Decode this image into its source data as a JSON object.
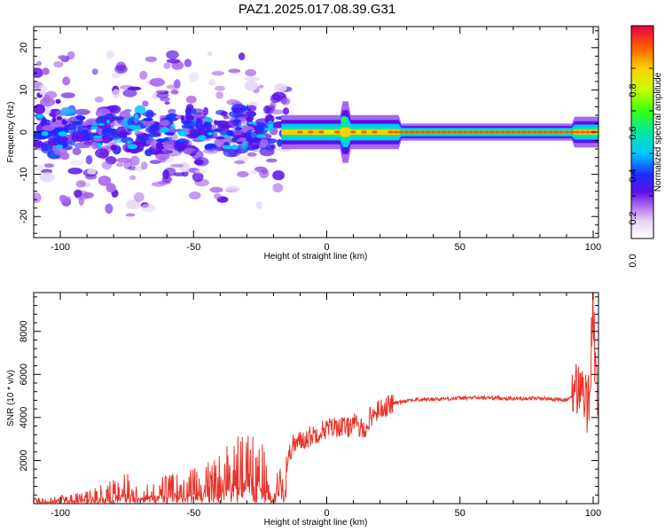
{
  "title": "PAZ1.2025.017.08.39.G31",
  "colors": {
    "snr_line": "#e8332b",
    "axis": "#000000",
    "spectrogram_colormap": [
      "#ffffff",
      "#e8d6f5",
      "#a868ee",
      "#5a10e6",
      "#1e2cff",
      "#00c8ff",
      "#00e8a0",
      "#38ff10",
      "#c8ff00",
      "#ffd000",
      "#ff5a00",
      "#e8004a"
    ]
  },
  "chart_data": [
    {
      "type": "heatmap",
      "name": "spectrogram",
      "xlabel": "Height of straight line (km)",
      "ylabel": "Frequency (Hz)",
      "xlim": [
        -110,
        102
      ],
      "ylim": [
        -25,
        25
      ],
      "xticks": [
        -100,
        -50,
        0,
        50,
        100
      ],
      "yticks": [
        20,
        10,
        0,
        -10,
        -20
      ],
      "colorbar": {
        "label": "Normalized spectral amplitude",
        "range": [
          0,
          1
        ],
        "ticks": [
          "0.0",
          "0.2",
          "0.4",
          "0.6",
          "0.8"
        ],
        "tick_values": [
          0.0,
          0.2,
          0.4,
          0.6,
          0.8
        ]
      },
      "description_bands": [
        {
          "x_range": [
            -110,
            -18
          ],
          "pattern": "diffuse scattered noise, amplitude 0.1-0.4, frequency spread -25..25 Hz"
        },
        {
          "x_range": [
            -18,
            102
          ],
          "pattern": "coherent line near 0 Hz, amplitude 0.5-1.0"
        }
      ]
    },
    {
      "type": "line",
      "name": "snr",
      "xlabel": "Height of straight line (km)",
      "ylabel": "SNR (10 * v/v)",
      "xlim": [
        -110,
        102
      ],
      "ylim": [
        0,
        9800
      ],
      "xticks": [
        -100,
        -50,
        0,
        50,
        100
      ],
      "yticks": [
        2000,
        4000,
        6000,
        8000
      ],
      "series": [
        {
          "x": [
            -110,
            -100,
            -90,
            -80,
            -75,
            -70,
            -60,
            -50,
            -45,
            -40,
            -35,
            -30,
            -25,
            -20,
            -17,
            -15,
            -13,
            -10,
            -5,
            0,
            5,
            8,
            10,
            12,
            14,
            15,
            16,
            18,
            20,
            25,
            30,
            40,
            50,
            60,
            70,
            80,
            85,
            90,
            92,
            94,
            96,
            98,
            99,
            100,
            101,
            102
          ],
          "values": [
            150,
            200,
            300,
            600,
            800,
            500,
            700,
            900,
            1000,
            1300,
            1700,
            1800,
            1700,
            400,
            1200,
            1800,
            2700,
            2900,
            3200,
            3500,
            3600,
            3500,
            3900,
            3400,
            3600,
            3300,
            4000,
            4200,
            4400,
            4650,
            4800,
            4850,
            4900,
            4920,
            4880,
            4900,
            4850,
            4800,
            5000,
            5300,
            5500,
            4200,
            6200,
            9500,
            5200,
            4800
          ]
        }
      ]
    }
  ]
}
